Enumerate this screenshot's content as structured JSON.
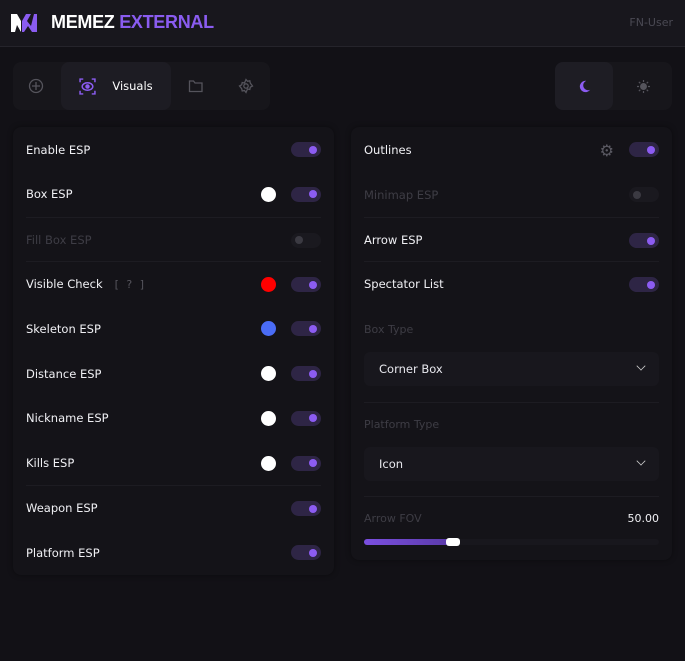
{
  "header": {
    "brand_a": "MEMEZ",
    "brand_b": "EXTERNAL",
    "logo": "MW",
    "user": "FN-User"
  },
  "tabs": [
    {
      "icon": "crosshair-icon"
    },
    {
      "icon": "eye-scan-icon",
      "label": "Visuals",
      "active": true
    },
    {
      "icon": "folder-icon"
    },
    {
      "icon": "gear-icon"
    }
  ],
  "theme": {
    "active": "dark",
    "dark_icon": "moon-icon",
    "light_icon": "sun-icon"
  },
  "colors": {
    "accent": "#8c5cf2"
  },
  "left": [
    {
      "label": "Enable ESP",
      "on": true
    },
    {
      "label": "Box ESP",
      "on": true,
      "color": "#ffffff"
    },
    {
      "label": "Fill Box ESP",
      "on": false,
      "disabled": true
    },
    {
      "label": "Visible Check",
      "hint": "[ ? ]",
      "on": true,
      "color": "#ff0000"
    },
    {
      "label": "Skeleton ESP",
      "on": true,
      "color": "#4a6cf5"
    },
    {
      "label": "Distance ESP",
      "on": true,
      "color": "#ffffff"
    },
    {
      "label": "Nickname ESP",
      "on": true,
      "color": "#ffffff"
    },
    {
      "label": "Kills ESP",
      "on": true,
      "color": "#ffffff"
    },
    {
      "label": "Weapon ESP",
      "on": true
    },
    {
      "label": "Platform ESP",
      "on": true
    }
  ],
  "right": {
    "toggles": [
      {
        "label": "Outlines",
        "on": true,
        "settings": true
      },
      {
        "label": "Minimap ESP",
        "on": false,
        "disabled": true
      },
      {
        "label": "Arrow ESP",
        "on": true
      },
      {
        "label": "Spectator List",
        "on": true
      }
    ],
    "box_type": {
      "label": "Box Type",
      "value": "Corner Box"
    },
    "platform_type": {
      "label": "Platform Type",
      "value": "Icon"
    },
    "arrow_fov": {
      "label": "Arrow FOV",
      "value": "50.00",
      "fill_fraction": 0.3
    }
  }
}
